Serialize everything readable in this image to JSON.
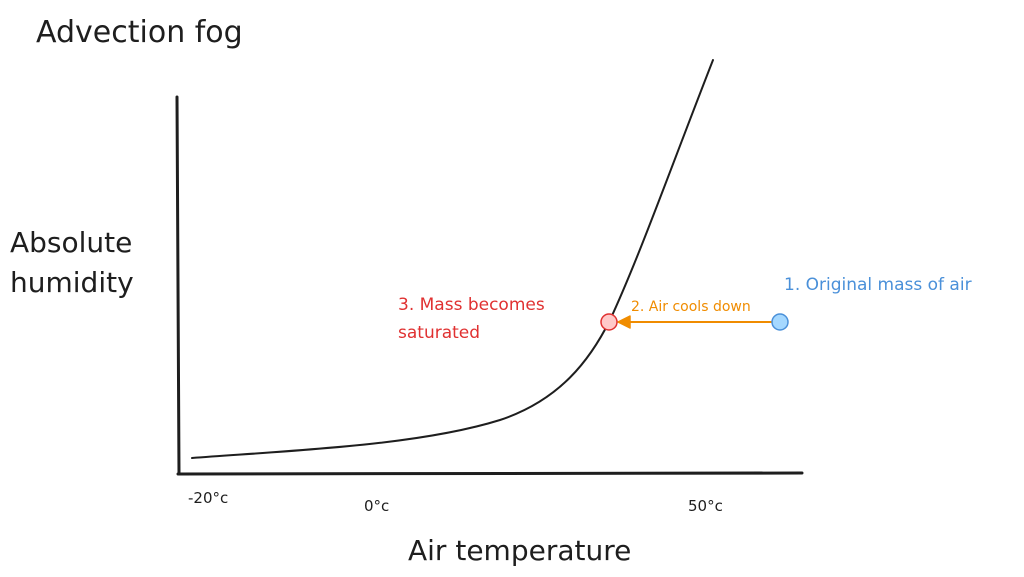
{
  "title": "Advection fog",
  "y_axis": {
    "line1": "Absolute",
    "line2": "humidity"
  },
  "x_axis": {
    "label": "Air temperature",
    "ticks": [
      "-20°c",
      "0°c",
      "50°c"
    ]
  },
  "annotations": {
    "original": "1. Original mass of air",
    "cools": "2. Air cools down",
    "saturated_line1": "3. Mass becomes",
    "saturated_line2": "saturated"
  },
  "colors": {
    "ink": "#1e1e1e",
    "blue": "#4a90d9",
    "blue_fill": "#a5d8ff",
    "orange": "#f08c00",
    "red": "#e03131",
    "red_fill": "#ffc9c9"
  },
  "icons": {
    "original_marker": "circle-marker",
    "saturated_marker": "circle-marker",
    "cooling_arrow": "arrow-left"
  }
}
